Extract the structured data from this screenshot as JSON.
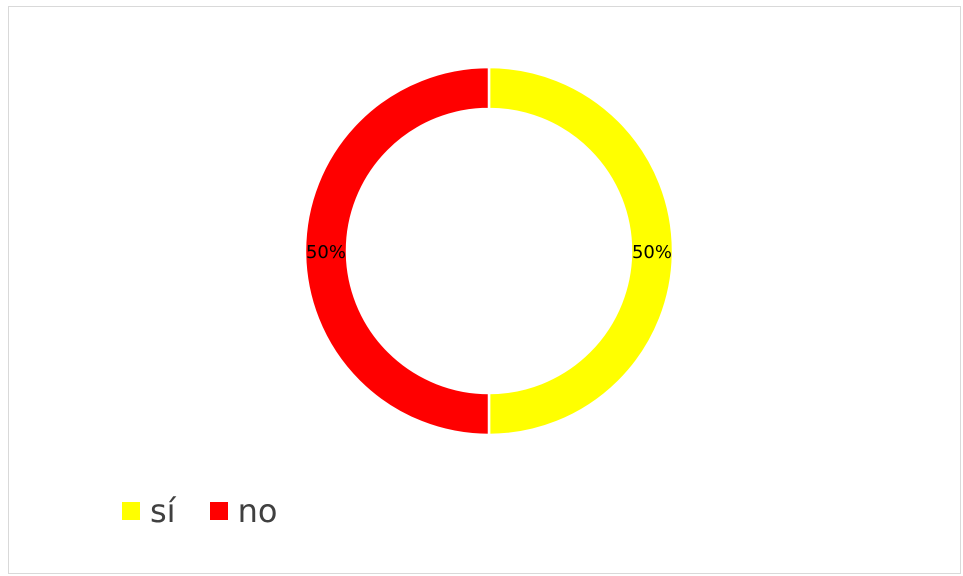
{
  "chart_data": {
    "type": "pie",
    "variant": "donut",
    "categories": [
      "sí",
      "no"
    ],
    "values": [
      50,
      50
    ],
    "labels": [
      "50%",
      "50%"
    ],
    "colors": [
      "#FFFF00",
      "#FF0000"
    ],
    "legend_position": "bottom-left"
  }
}
